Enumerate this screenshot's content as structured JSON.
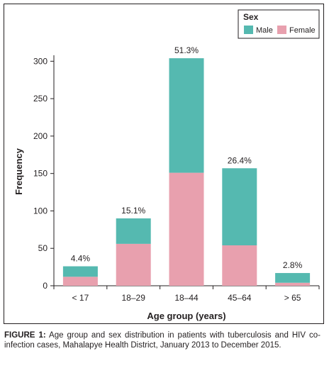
{
  "chart_data": {
    "type": "bar",
    "stacked": true,
    "categories": [
      "< 17",
      "18–29",
      "18–44",
      "45–64",
      "> 65"
    ],
    "series": [
      {
        "name": "Female",
        "color": "#e8a0ae",
        "values": [
          12,
          56,
          151,
          54,
          4
        ]
      },
      {
        "name": "Male",
        "color": "#55b9b0",
        "values": [
          14,
          34,
          153,
          103,
          13
        ]
      }
    ],
    "bar_labels": [
      "4.4%",
      "15.1%",
      "51.3%",
      "26.4%",
      "2.8%"
    ],
    "xlabel": "Age group (years)",
    "ylabel": "Frequency",
    "ylim": [
      0,
      320
    ],
    "yticks": [
      0,
      50,
      100,
      150,
      200,
      250,
      300
    ],
    "legend": {
      "title": "Sex",
      "position": "top-right",
      "order": [
        "Male",
        "Female"
      ]
    }
  },
  "caption": {
    "label": "FIGURE 1:",
    "text": " Age group and sex distribution in patients with tuberculosis and HIV co-infection cases, Mahalapye Health District, January 2013 to December 2015."
  }
}
